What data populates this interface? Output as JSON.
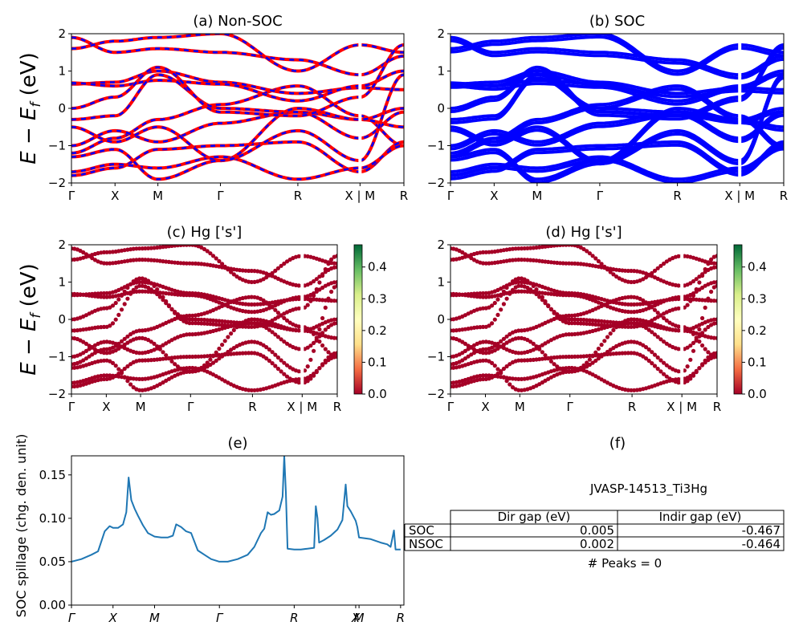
{
  "chart_data": [
    {
      "type": "line",
      "title": "(a) Non-SOC",
      "ylabel": "E − E",
      "ylabel_sub": "f",
      "ylabel_unit": " (eV)",
      "ylim": [
        -2,
        2
      ],
      "yticks": [
        "2",
        "1",
        "0",
        "−1",
        "−2"
      ],
      "kpath": [
        "Γ",
        "X",
        "M",
        "Γ",
        "R",
        "X | M",
        "R"
      ],
      "kpos": [
        0,
        0.131,
        0.26,
        0.448,
        0.681,
        0.868,
        1.0
      ],
      "series": [
        {
          "color": "#ff0000",
          "style": "solid"
        },
        {
          "color": "#0000ff",
          "style": "dashed"
        }
      ],
      "bands": [
        [
          -1.2,
          -0.8,
          -0.3,
          0.1,
          0.6,
          -0.2,
          -1.0
        ],
        [
          -1.0,
          -0.6,
          -0.9,
          -0.4,
          -0.1,
          -0.3,
          -0.5
        ],
        [
          0.65,
          0.7,
          1.0,
          0.7,
          0.4,
          0.55,
          0.5
        ],
        [
          0.68,
          0.6,
          0.75,
          0.65,
          0.2,
          0.6,
          1.0
        ],
        [
          -0.3,
          -0.2,
          0.9,
          0.0,
          -0.1,
          -0.8,
          -0.1
        ],
        [
          -1.8,
          -1.6,
          -1.1,
          -1.0,
          -0.9,
          -1.7,
          -0.9
        ],
        [
          -1.7,
          -1.5,
          -1.6,
          -1.3,
          -1.9,
          -1.6,
          -1.0
        ],
        [
          1.9,
          1.5,
          1.6,
          1.5,
          1.3,
          0.9,
          1.4
        ],
        [
          -0.5,
          -0.9,
          -0.5,
          -1.4,
          0.0,
          -0.3,
          0.0
        ],
        [
          1.6,
          1.8,
          1.9,
          2.0,
          1.0,
          1.7,
          1.5
        ],
        [
          -1.3,
          -1.1,
          -1.9,
          -1.4,
          -0.6,
          -1.4,
          0.9
        ],
        [
          0.0,
          0.3,
          1.1,
          -0.1,
          -0.2,
          0.3,
          1.7
        ]
      ]
    },
    {
      "type": "line",
      "title": "(b) SOC",
      "ylim": [
        -2,
        2
      ],
      "yticks": [
        "2",
        "1",
        "0",
        "−1",
        "−2"
      ],
      "kpath": [
        "Γ",
        "X",
        "M",
        "Γ",
        "R",
        "X | M",
        "R"
      ],
      "kpos": [
        0,
        0.131,
        0.26,
        0.448,
        0.681,
        0.868,
        1.0
      ],
      "series": [
        {
          "color": "#0000ff",
          "style": "solid"
        }
      ],
      "bands": [
        [
          -1.2,
          -0.8,
          -0.3,
          0.1,
          0.6,
          -0.2,
          -1.0
        ],
        [
          -1.0,
          -0.6,
          -0.9,
          -0.4,
          -0.1,
          -0.3,
          -0.5
        ],
        [
          0.65,
          0.7,
          1.0,
          0.7,
          0.4,
          0.55,
          0.5
        ],
        [
          0.68,
          0.6,
          0.75,
          0.65,
          0.2,
          0.6,
          1.0
        ],
        [
          -0.3,
          -0.2,
          0.9,
          0.0,
          -0.1,
          -0.8,
          -0.1
        ],
        [
          -1.8,
          -1.6,
          -1.1,
          -1.0,
          -0.9,
          -1.7,
          -0.9
        ],
        [
          -1.7,
          -1.5,
          -1.6,
          -1.3,
          -1.9,
          -1.6,
          -1.0
        ],
        [
          1.9,
          1.5,
          1.6,
          1.5,
          1.3,
          0.9,
          1.4
        ],
        [
          -0.5,
          -0.9,
          -0.5,
          -1.4,
          0.0,
          -0.3,
          0.0
        ],
        [
          1.6,
          1.8,
          1.9,
          2.0,
          1.0,
          1.7,
          1.5
        ],
        [
          -1.3,
          -1.1,
          -1.9,
          -1.4,
          -0.6,
          -1.4,
          0.9
        ],
        [
          0.0,
          0.3,
          1.1,
          -0.1,
          -0.2,
          0.3,
          1.7
        ]
      ]
    },
    {
      "type": "scatter",
      "title": "(c)  Hg ['s']",
      "ylabel": "E − E",
      "ylabel_sub": "f",
      "ylabel_unit": " (eV)",
      "ylim": [
        -2,
        2
      ],
      "yticks": [
        "2",
        "1",
        "0",
        "−1",
        "−2"
      ],
      "kpath": [
        "Γ",
        "X",
        "M",
        "Γ",
        "R",
        "X | M",
        "R"
      ],
      "kpos": [
        0,
        0.131,
        0.26,
        0.448,
        0.681,
        0.868,
        1.0
      ],
      "point_color": "#a50026",
      "colorbar": {
        "ticks": [
          "0.4",
          "0.3",
          "0.2",
          "0.1",
          "0.0"
        ],
        "range": [
          0,
          0.47
        ],
        "colors": [
          "#006837",
          "#66bd63",
          "#d9ef8b",
          "#ffffbf",
          "#fee08b",
          "#f46d43",
          "#a50026"
        ]
      },
      "bands": [
        [
          -1.2,
          -0.8,
          -0.3,
          0.1,
          0.6,
          -0.2,
          -1.0
        ],
        [
          -1.0,
          -0.6,
          -0.9,
          -0.4,
          -0.1,
          -0.3,
          -0.5
        ],
        [
          0.65,
          0.7,
          1.0,
          0.7,
          0.4,
          0.55,
          0.5
        ],
        [
          0.68,
          0.6,
          0.75,
          0.65,
          0.2,
          0.6,
          1.0
        ],
        [
          -0.3,
          -0.2,
          0.9,
          0.0,
          -0.1,
          -0.8,
          -0.1
        ],
        [
          -1.8,
          -1.6,
          -1.1,
          -1.0,
          -0.9,
          -1.7,
          -0.9
        ],
        [
          -1.7,
          -1.5,
          -1.6,
          -1.3,
          -1.9,
          -1.6,
          -1.0
        ],
        [
          1.9,
          1.5,
          1.6,
          1.5,
          1.3,
          0.9,
          1.4
        ],
        [
          -0.5,
          -0.9,
          -0.5,
          -1.4,
          0.0,
          -0.3,
          0.0
        ],
        [
          1.6,
          1.8,
          1.9,
          2.0,
          1.0,
          1.7,
          1.5
        ],
        [
          -1.3,
          -1.1,
          -1.9,
          -1.4,
          -0.6,
          -1.4,
          0.9
        ],
        [
          0.0,
          0.3,
          1.1,
          -0.1,
          -0.2,
          0.3,
          1.7
        ]
      ]
    },
    {
      "type": "scatter",
      "title": "(d) Hg ['s']",
      "ylim": [
        -2,
        2
      ],
      "yticks": [
        "2",
        "1",
        "0",
        "−1",
        "−2"
      ],
      "kpath": [
        "Γ",
        "X",
        "M",
        "Γ",
        "R",
        "X | M",
        "R"
      ],
      "kpos": [
        0,
        0.131,
        0.26,
        0.448,
        0.681,
        0.868,
        1.0
      ],
      "point_color": "#a50026",
      "colorbar": {
        "ticks": [
          "0.4",
          "0.3",
          "0.2",
          "0.1",
          "0.0"
        ],
        "range": [
          0,
          0.47
        ],
        "colors": [
          "#006837",
          "#66bd63",
          "#d9ef8b",
          "#ffffbf",
          "#fee08b",
          "#f46d43",
          "#a50026"
        ]
      },
      "bands": [
        [
          -1.2,
          -0.8,
          -0.3,
          0.1,
          0.6,
          -0.2,
          -1.0
        ],
        [
          -1.0,
          -0.6,
          -0.9,
          -0.4,
          -0.1,
          -0.3,
          -0.5
        ],
        [
          0.65,
          0.7,
          1.0,
          0.7,
          0.4,
          0.55,
          0.5
        ],
        [
          0.68,
          0.6,
          0.75,
          0.65,
          0.2,
          0.6,
          1.0
        ],
        [
          -0.3,
          -0.2,
          0.9,
          0.0,
          -0.1,
          -0.8,
          -0.1
        ],
        [
          -1.8,
          -1.6,
          -1.1,
          -1.0,
          -0.9,
          -1.7,
          -0.9
        ],
        [
          -1.7,
          -1.5,
          -1.6,
          -1.3,
          -1.9,
          -1.6,
          -1.0
        ],
        [
          1.9,
          1.5,
          1.6,
          1.5,
          1.3,
          0.9,
          1.4
        ],
        [
          -0.5,
          -0.9,
          -0.5,
          -1.4,
          0.0,
          -0.3,
          0.0
        ],
        [
          1.6,
          1.8,
          1.9,
          2.0,
          1.0,
          1.7,
          1.5
        ],
        [
          -1.3,
          -1.1,
          -1.9,
          -1.4,
          -0.6,
          -1.4,
          0.9
        ],
        [
          0.0,
          0.3,
          1.1,
          -0.1,
          -0.2,
          0.3,
          1.7
        ]
      ]
    },
    {
      "type": "line",
      "title": "(e)",
      "ylabel": "SOC spillage (chg. den. unit)",
      "ylim": [
        0,
        0.172
      ],
      "yticks": [
        0.0,
        0.05,
        0.1,
        0.15
      ],
      "ytick_labels": [
        "0.00",
        "0.05",
        "0.10",
        "0.15"
      ],
      "kpath": [
        "Γ",
        "X",
        "M",
        "Γ",
        "R",
        "X",
        "M",
        "R"
      ],
      "kpos": [
        0,
        0.125,
        0.25,
        0.445,
        0.67,
        0.855,
        0.865,
        0.99
      ],
      "line_color": "#1f77b4",
      "x": [
        0,
        0.03,
        0.06,
        0.08,
        0.1,
        0.115,
        0.125,
        0.14,
        0.155,
        0.165,
        0.172,
        0.18,
        0.19,
        0.2,
        0.215,
        0.23,
        0.25,
        0.27,
        0.29,
        0.305,
        0.315,
        0.33,
        0.345,
        0.36,
        0.38,
        0.4,
        0.42,
        0.445,
        0.47,
        0.5,
        0.53,
        0.55,
        0.57,
        0.58,
        0.59,
        0.6,
        0.61,
        0.625,
        0.635,
        0.64,
        0.645,
        0.65,
        0.67,
        0.69,
        0.71,
        0.73,
        0.735,
        0.74,
        0.745,
        0.76,
        0.78,
        0.8,
        0.815,
        0.825,
        0.83,
        0.84,
        0.855,
        0.86,
        0.865,
        0.9,
        0.93,
        0.95,
        0.96,
        0.97,
        0.975,
        0.99
      ],
      "values": [
        0.05,
        0.053,
        0.058,
        0.062,
        0.085,
        0.091,
        0.089,
        0.089,
        0.093,
        0.107,
        0.147,
        0.121,
        0.111,
        0.103,
        0.092,
        0.083,
        0.079,
        0.078,
        0.078,
        0.08,
        0.093,
        0.09,
        0.085,
        0.083,
        0.063,
        0.058,
        0.053,
        0.05,
        0.05,
        0.053,
        0.058,
        0.067,
        0.083,
        0.088,
        0.107,
        0.104,
        0.105,
        0.109,
        0.125,
        0.172,
        0.13,
        0.065,
        0.064,
        0.064,
        0.065,
        0.066,
        0.114,
        0.1,
        0.072,
        0.075,
        0.08,
        0.087,
        0.098,
        0.139,
        0.114,
        0.108,
        0.097,
        0.09,
        0.078,
        0.076,
        0.072,
        0.07,
        0.067,
        0.086,
        0.064,
        0.064
      ]
    }
  ],
  "panel_f": {
    "title": "(f)",
    "material": "JVASP-14513_Ti3Hg",
    "table": {
      "headers": [
        "",
        "Dir gap (eV)",
        "Indir gap (eV)"
      ],
      "rows": [
        [
          "SOC",
          "0.005",
          "-0.467"
        ],
        [
          "NSOC",
          "0.002",
          "-0.464"
        ]
      ]
    },
    "peaks": "# Peaks = 0"
  }
}
